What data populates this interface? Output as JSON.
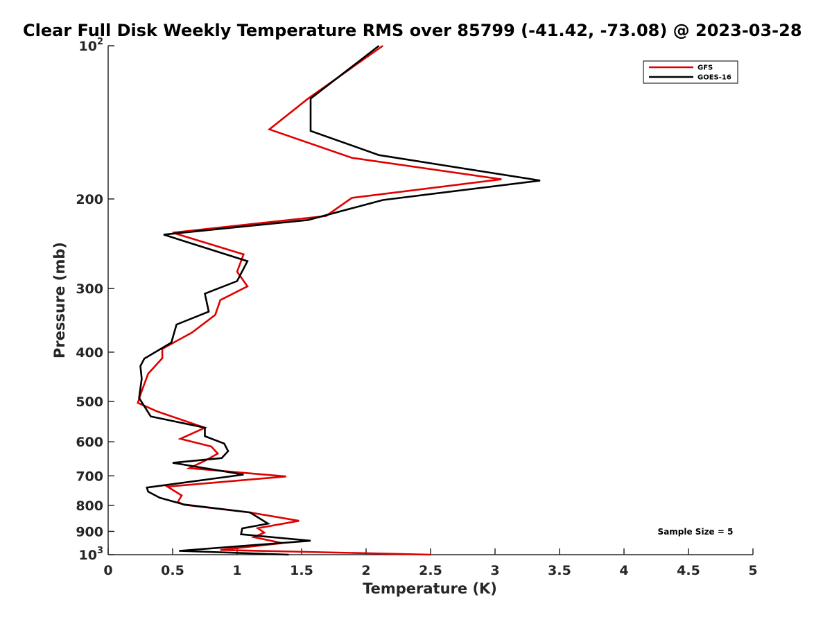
{
  "chart_data": {
    "type": "line",
    "title": "Clear Full Disk Weekly Temperature RMS over 85799 (-41.42, -73.08) @ 2023-03-28",
    "xlabel": "Temperature (K)",
    "ylabel": "Pressure (mb)",
    "xlim": [
      0,
      5
    ],
    "ylim": [
      100,
      1000
    ],
    "y_scale": "log",
    "y_reversed": true,
    "grid": false,
    "legend_position": "top-right",
    "xticks": [
      "0",
      "0.5",
      "1",
      "1.5",
      "2",
      "2.5",
      "3",
      "3.5",
      "4",
      "4.5",
      "5"
    ],
    "yticks": [
      {
        "value": 100,
        "base": "10",
        "exp": "2"
      },
      {
        "value": 200,
        "label": "200"
      },
      {
        "value": 300,
        "label": "300"
      },
      {
        "value": 400,
        "label": "400"
      },
      {
        "value": 500,
        "label": "500"
      },
      {
        "value": 600,
        "label": "600"
      },
      {
        "value": 700,
        "label": "700"
      },
      {
        "value": 800,
        "label": "800"
      },
      {
        "value": 900,
        "label": "900"
      },
      {
        "value": 1000,
        "base": "10",
        "exp": "3"
      }
    ],
    "series": [
      {
        "name": "GFS",
        "color": "#e00000",
        "x": [
          2.13,
          1.55,
          1.25,
          1.89,
          3.05,
          1.89,
          1.69,
          0.5,
          1.05,
          1.0,
          1.08,
          0.87,
          0.83,
          0.65,
          0.42,
          0.42,
          0.31,
          0.26,
          0.23,
          0.38,
          0.75,
          0.56,
          0.8,
          0.85,
          0.75,
          0.63,
          1.38,
          0.46,
          0.57,
          0.54,
          0.59,
          1.1,
          1.48,
          1.16,
          1.21,
          1.13,
          1.35,
          0.87,
          2.5
        ],
        "y": [
          100,
          127,
          146,
          166,
          183,
          199,
          216,
          233,
          257,
          278,
          297,
          316,
          338,
          366,
          394,
          411,
          441,
          477,
          503,
          523,
          563,
          592,
          613,
          633,
          654,
          676,
          702,
          735,
          765,
          788,
          798,
          826,
          858,
          887,
          905,
          924,
          949,
          979,
          1000
        ]
      },
      {
        "name": "GOES-16",
        "color": "#000000",
        "x": [
          2.1,
          1.57,
          1.57,
          1.57,
          2.1,
          3.35,
          2.13,
          1.55,
          0.43,
          1.08,
          1.0,
          0.75,
          0.78,
          0.53,
          0.49,
          0.28,
          0.25,
          0.26,
          0.24,
          0.33,
          0.75,
          0.75,
          0.9,
          0.93,
          0.88,
          0.5,
          1.05,
          0.3,
          0.31,
          0.4,
          0.59,
          1.1,
          1.24,
          1.04,
          1.03,
          1.57,
          0.55,
          1.4
        ],
        "y": [
          100,
          127,
          138,
          147,
          164,
          184,
          201,
          220,
          235,
          265,
          290,
          307,
          333,
          353,
          383,
          412,
          426,
          451,
          492,
          535,
          563,
          585,
          605,
          626,
          646,
          660,
          696,
          738,
          752,
          773,
          797,
          826,
          869,
          888,
          912,
          939,
          983,
          1000
        ]
      }
    ],
    "annotation": "Sample Size = 5"
  }
}
